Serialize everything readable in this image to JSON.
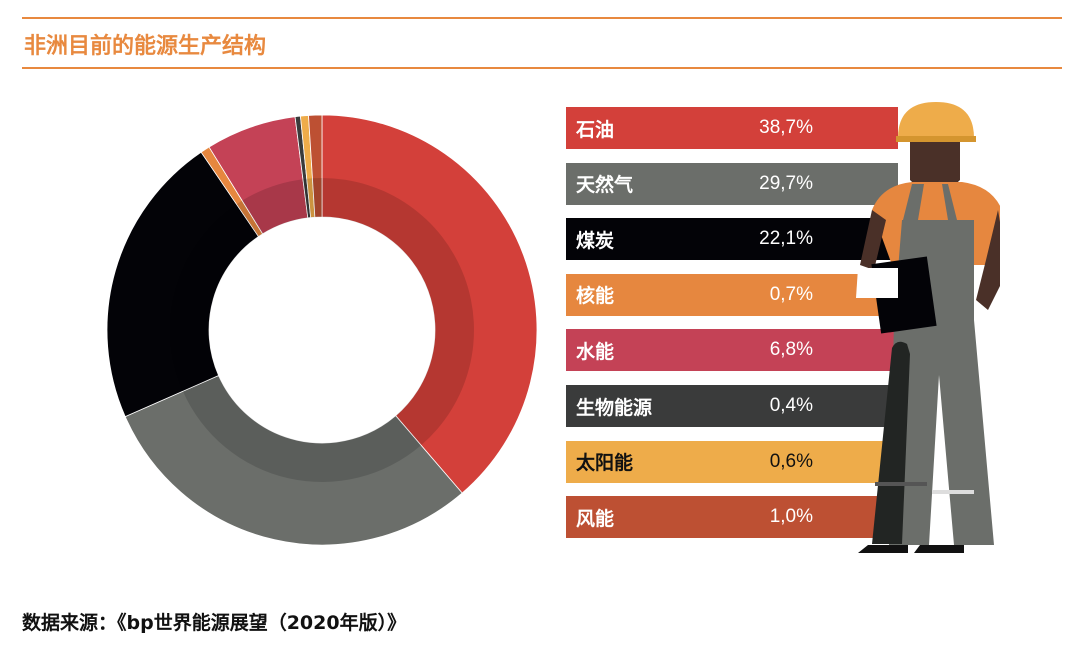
{
  "title": "非洲目前的能源生产结构",
  "source": "数据来源：《bp世界能源展望（2020年版）》",
  "chart_data": {
    "type": "pie",
    "variant": "donut",
    "title": "非洲目前的能源生产结构",
    "unit": "%",
    "categories": [
      "石油",
      "天然气",
      "煤炭",
      "核能",
      "水能",
      "生物能源",
      "太阳能",
      "风能"
    ],
    "values": [
      38.7,
      29.7,
      22.1,
      0.7,
      6.8,
      0.4,
      0.6,
      1.0
    ],
    "labels": [
      "38,7%",
      "29,7%",
      "22,1%",
      "0,7%",
      "6,8%",
      "0,4%",
      "0,6%",
      "1,0%"
    ],
    "colors": [
      "#d3403a",
      "#6b6e6a",
      "#030307",
      "#e6873f",
      "#c44256",
      "#3a3b3b",
      "#eeac4a",
      "#bd5033"
    ],
    "text_colors": [
      "#fff",
      "#fff",
      "#fff",
      "#fff",
      "#fff",
      "#fff",
      "#111",
      "#fff"
    ],
    "direction": "clockwise from top",
    "legend": "right"
  }
}
